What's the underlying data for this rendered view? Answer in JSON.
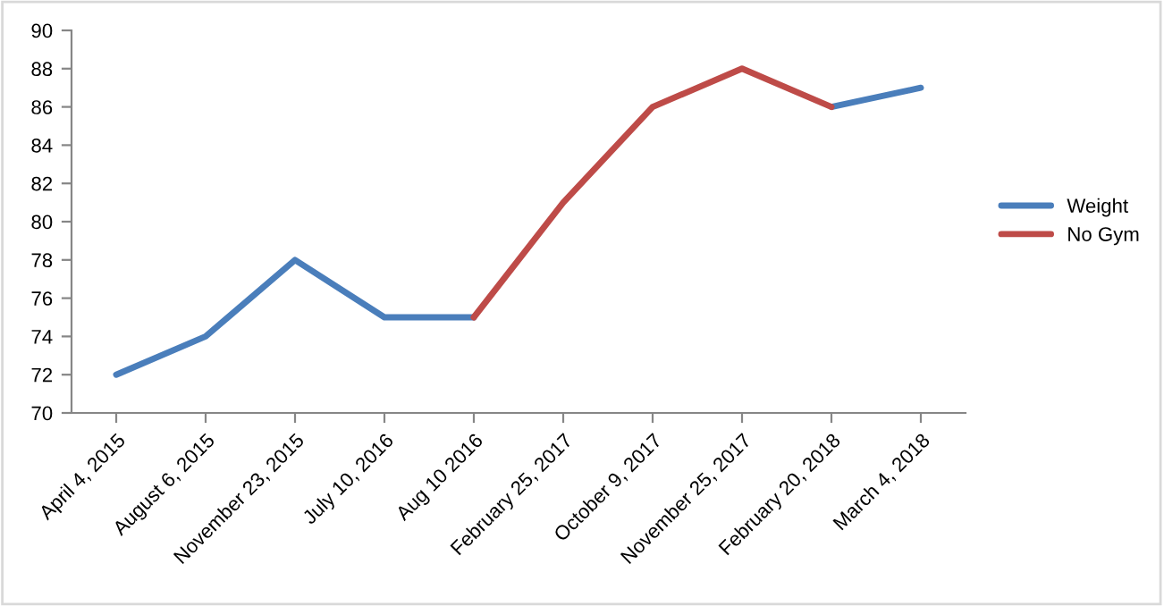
{
  "chart_data": {
    "type": "line",
    "categories": [
      "April 4, 2015",
      "August 6, 2015",
      "November 23, 2015",
      "July 10, 2016",
      "Aug 10 2016",
      "February 25, 2017",
      "October 9, 2017",
      "November 25, 2017",
      "February 20, 2018",
      "March 4, 2018"
    ],
    "series": [
      {
        "name": "Weight",
        "color": "#4a7ebb",
        "values": [
          72,
          74,
          78,
          75,
          75,
          null,
          null,
          null,
          86,
          87
        ]
      },
      {
        "name": "No Gym",
        "color": "#be4b48",
        "values": [
          null,
          null,
          null,
          null,
          75,
          81,
          86,
          88,
          86,
          null
        ]
      }
    ],
    "ylim": [
      70,
      90
    ],
    "yticks": [
      70,
      72,
      74,
      76,
      78,
      80,
      82,
      84,
      86,
      88,
      90
    ],
    "grid": false,
    "legend": "right",
    "marker": "none",
    "line_style": "solid"
  }
}
